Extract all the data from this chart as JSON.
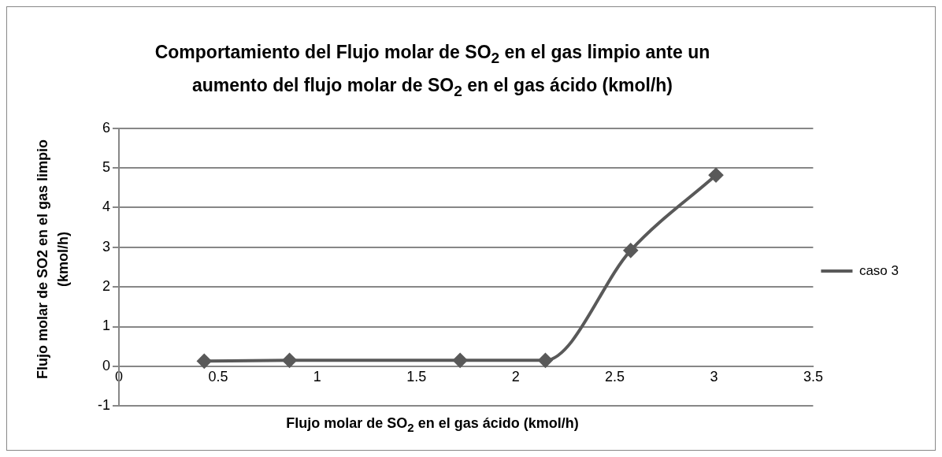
{
  "chart_data": {
    "type": "line",
    "title": "Comportamiento del Flujo molar de SO$_{2}$ en el gas limpio ante un aumento  del flujo molar de SO$_{2}$ en el gas ácido  (kmol/h)",
    "xlabel": "Flujo molar de SO$_{2}$ en el gas ácido (kmol/h)",
    "ylabel": "Flujo molar de SO2 en el gas limpio (kmol/h)",
    "x": [
      0.43,
      0.86,
      1.72,
      2.15,
      2.58,
      3.01
    ],
    "series": [
      {
        "name": "caso 3",
        "color": "#595959",
        "values": [
          0.13,
          0.15,
          0.15,
          0.15,
          2.92,
          4.82
        ]
      }
    ],
    "xlim": [
      0,
      3.5
    ],
    "xticks": [
      0,
      0.5,
      1,
      1.5,
      2,
      2.5,
      3,
      3.5
    ],
    "ylim": [
      -1,
      6
    ],
    "yticks": [
      -1,
      0,
      1,
      2,
      3,
      4,
      5,
      6
    ],
    "grid": "y",
    "legend": "right",
    "marker": "diamond",
    "line_style": "solid"
  }
}
